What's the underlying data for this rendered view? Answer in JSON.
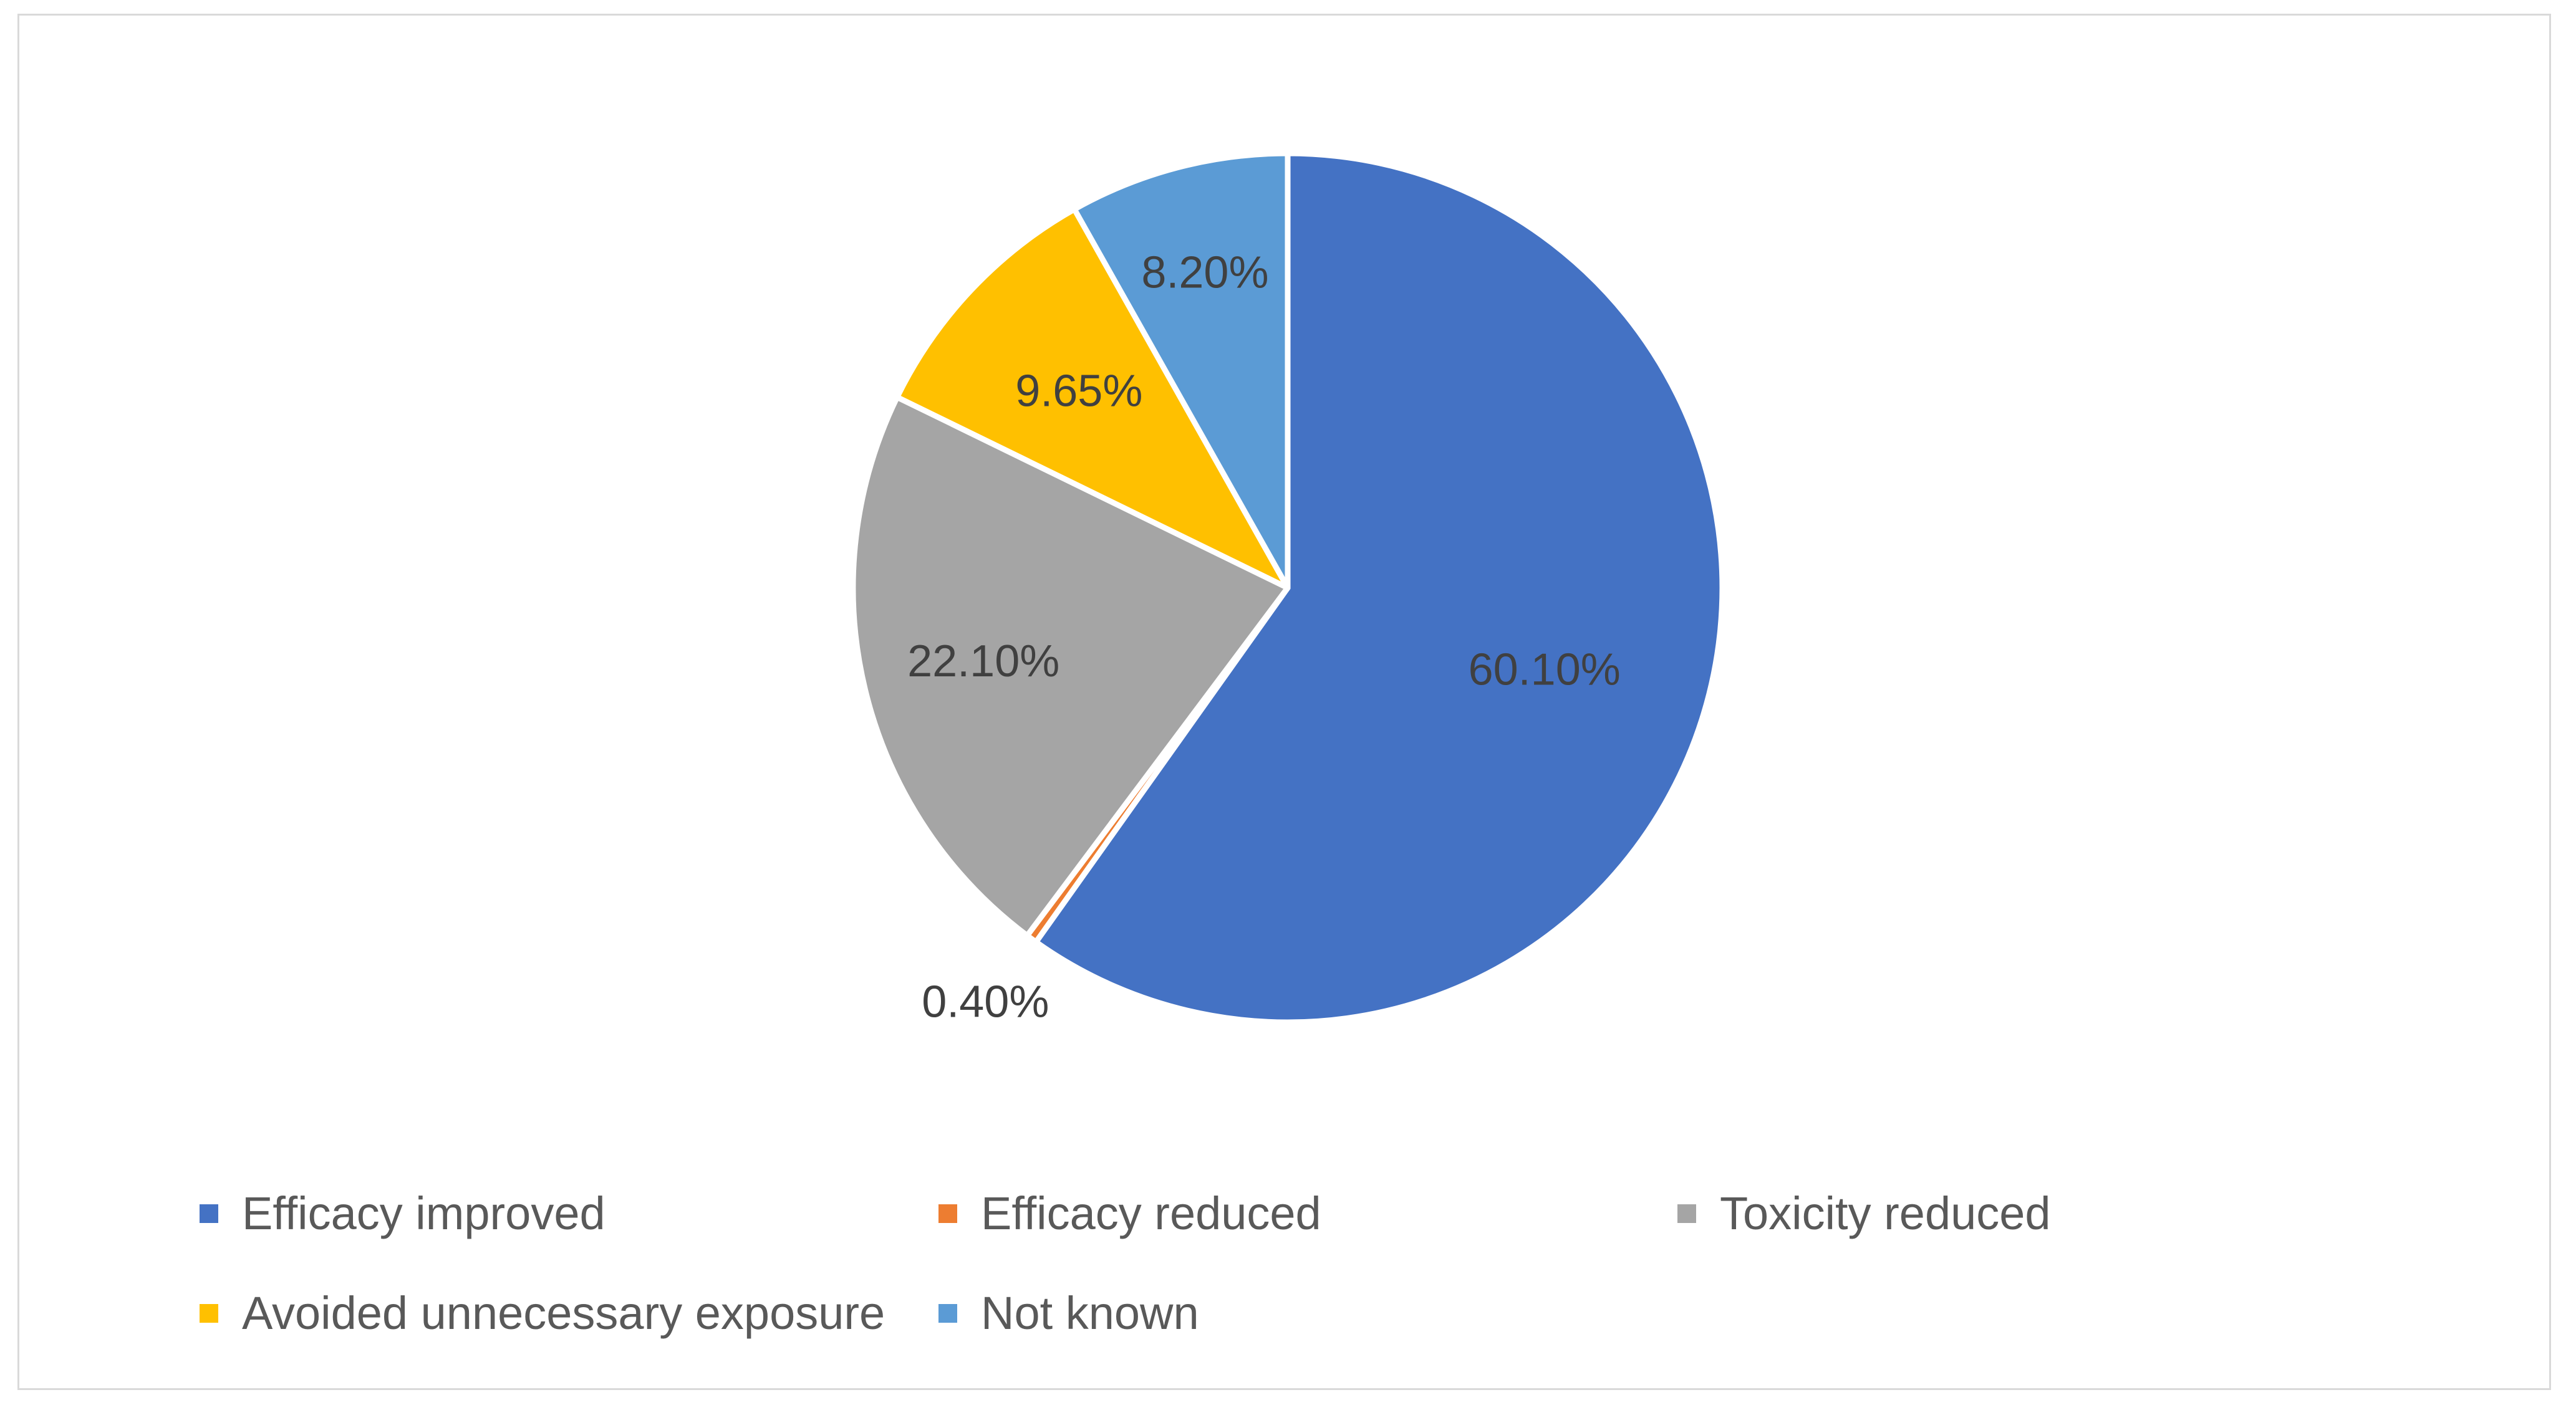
{
  "chart_data": {
    "type": "pie",
    "title": "",
    "categories": [
      "Efficacy improved",
      "Efficacy reduced",
      "Toxicity reduced",
      "Avoided unnecessary exposure",
      "Not known"
    ],
    "values": [
      60.1,
      0.4,
      22.1,
      9.65,
      8.2
    ],
    "labels": [
      "60.10%",
      "0.40%",
      "22.10%",
      "9.65%",
      "8.20%"
    ],
    "colors": [
      "#4472c4",
      "#ed7d31",
      "#a5a5a5",
      "#ffc000",
      "#5b9bd5"
    ],
    "start": "12 o'clock, clockwise",
    "legend_position": "bottom"
  }
}
